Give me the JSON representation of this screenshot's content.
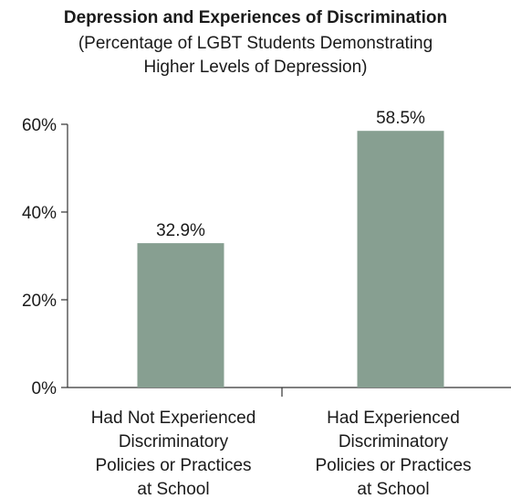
{
  "chart_data": {
    "type": "bar",
    "title": "Depression and Experiences of Discrimination",
    "subtitle": "(Percentage of LGBT Students Demonstrating Higher Levels of Depression)",
    "categories": [
      [
        "Had Not Experienced",
        "Discriminatory",
        "Policies or Practices",
        "at School"
      ],
      [
        "Had Experienced",
        "Discriminatory",
        "Policies or Practices",
        "at School"
      ]
    ],
    "values": [
      32.9,
      58.5
    ],
    "data_labels": [
      "32.9%",
      "58.5%"
    ],
    "y_ticks": [
      0,
      20,
      40,
      60
    ],
    "y_tick_labels": [
      "0%",
      "20%",
      "40%",
      "60%"
    ],
    "ylim": [
      0,
      60
    ],
    "bar_color": "#879f91",
    "axis_color": "#333333",
    "grid": false,
    "legend": "none"
  }
}
